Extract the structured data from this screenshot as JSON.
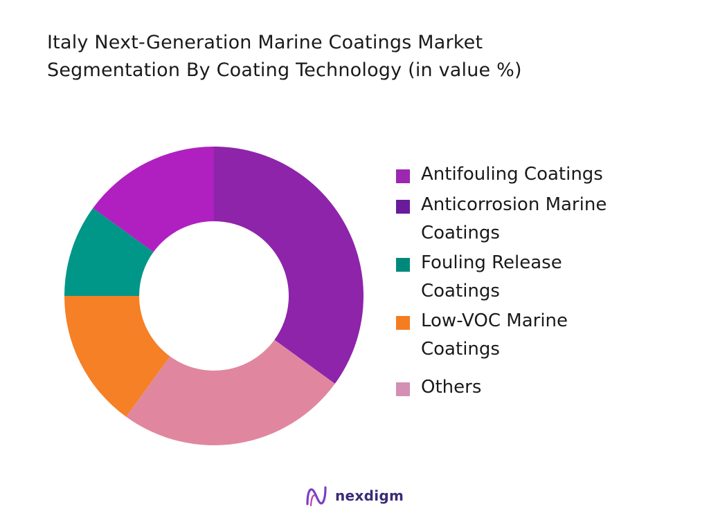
{
  "title_lines": [
    "Italy Next-Generation Marine Coatings Market",
    "Segmentation By Coating Technology (in value %)"
  ],
  "chart_data": {
    "type": "pie",
    "donut": true,
    "title": "Italy Next-Generation Marine Coatings Market Segmentation By Coating Technology (in value %)",
    "legend_position": "right",
    "series": [
      {
        "name": "Antifouling Coatings",
        "value": 35,
        "color": "#8e24aa"
      },
      {
        "name": "Anticorrosion Marine Coatings",
        "value": 25,
        "color": "#e0879f"
      },
      {
        "name": "Fouling Release Coatings",
        "value": 15,
        "color": "#f58025"
      },
      {
        "name": "Low-VOC Marine Coatings",
        "value": 10,
        "color": "#009688"
      },
      {
        "name": "Others",
        "value": 15,
        "color": "#b020c0"
      }
    ]
  },
  "legend": [
    {
      "lines": [
        "Antifouling Coatings"
      ],
      "color": "#9c27b0"
    },
    {
      "lines": [
        "Anticorrosion Marine",
        "Coatings"
      ],
      "color": "#6a1b9a"
    },
    {
      "lines": [
        "Fouling Release",
        "Coatings"
      ],
      "color": "#00897b"
    },
    {
      "lines": [
        "Low-VOC Marine",
        "Coatings"
      ],
      "color": "#f57c20"
    },
    {
      "lines": [
        "Others"
      ],
      "color": "#d48fb5"
    }
  ],
  "logo": {
    "text": "nexdigm"
  }
}
